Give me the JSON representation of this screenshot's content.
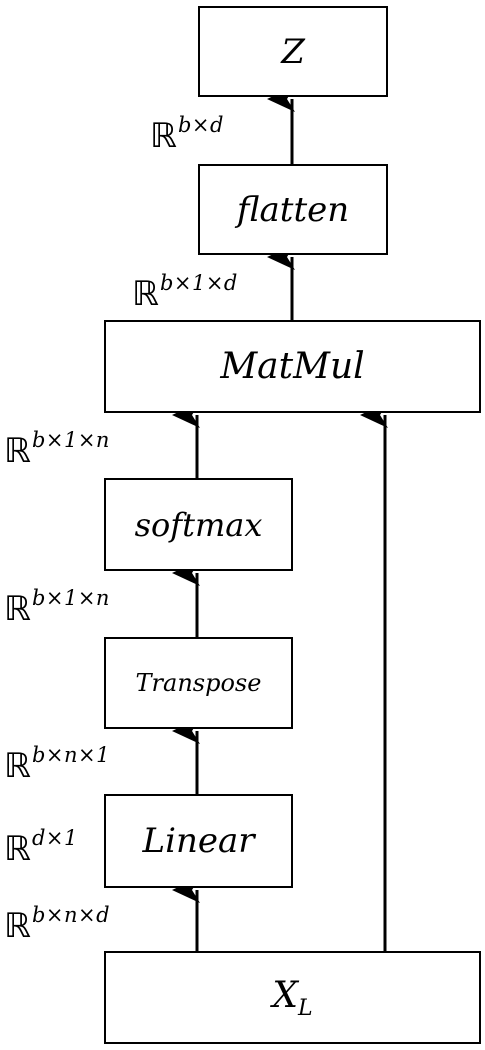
{
  "nodes": {
    "z": "Z",
    "flatten": "flatten",
    "matmul": "MatMul",
    "softmax": "softmax",
    "transpose": "Transpose",
    "linear": "Linear",
    "x_base": "X",
    "x_sub": "L"
  },
  "labels": {
    "double_struck": "ℝ",
    "z_dim": "b×d",
    "flatten_dim": "b×1×d",
    "matmul_dim": "b×1×n",
    "softmax_dim": "b×1×n",
    "transpose_dim": "b×n×1",
    "linear_weight_dim": "d×1",
    "input_dim": "b×n×d"
  },
  "colors": {
    "stroke": "#000000",
    "fill": "#ffffff"
  }
}
